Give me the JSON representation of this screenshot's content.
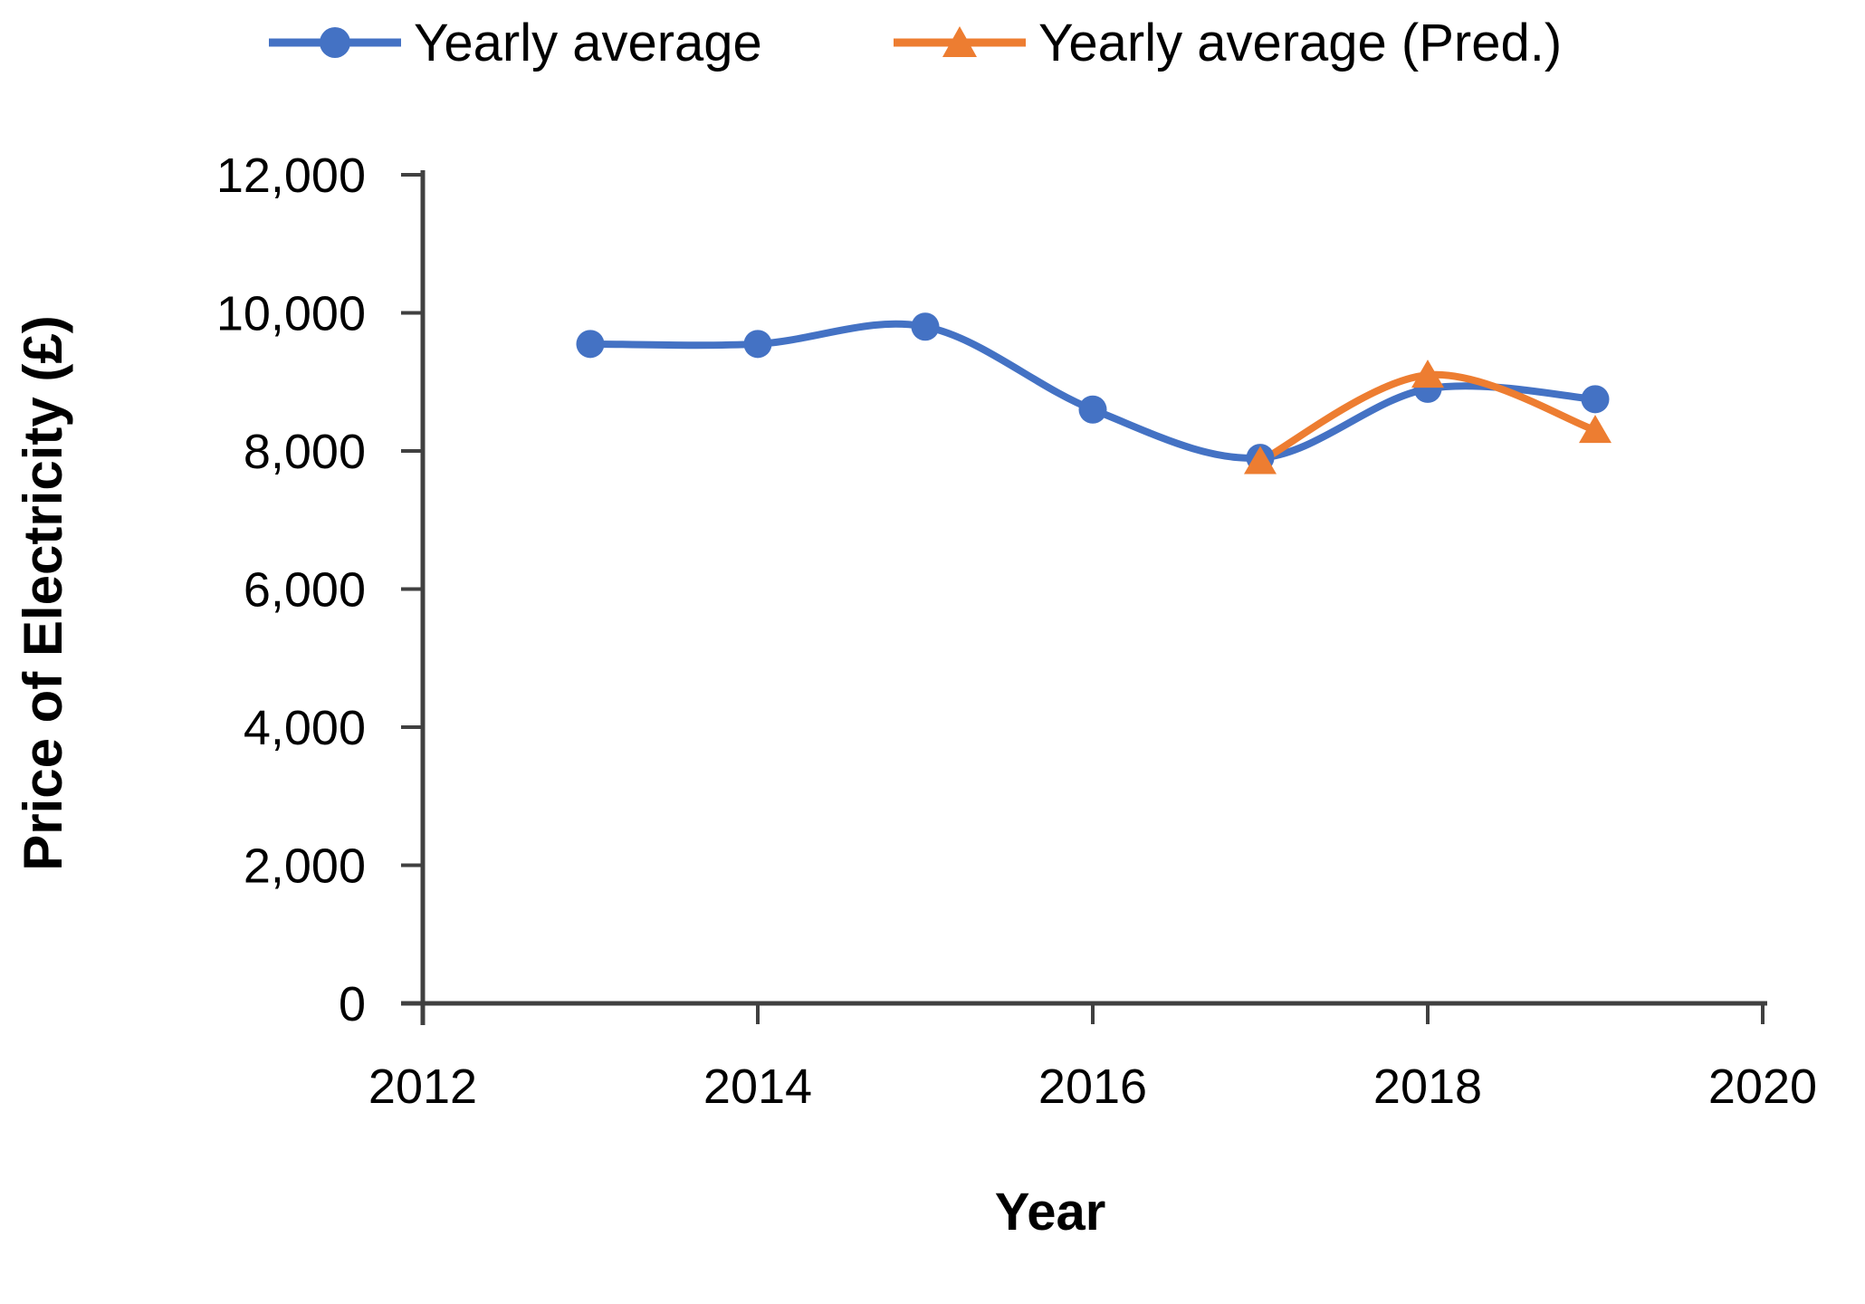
{
  "chart_data": {
    "type": "line",
    "title": "",
    "xlabel": "Year",
    "ylabel": "Price of Electricity (£)",
    "xlim": [
      2012,
      2020
    ],
    "ylim": [
      0,
      12000
    ],
    "grid": false,
    "legend_position": "top",
    "x_ticks": [
      2012,
      2014,
      2016,
      2018,
      2020
    ],
    "x_tick_labels": [
      "2012",
      "2014",
      "2016",
      "2018",
      "2020"
    ],
    "y_ticks": [
      0,
      2000,
      4000,
      6000,
      8000,
      10000,
      12000
    ],
    "y_tick_labels": [
      "0",
      "2,000",
      "4,000",
      "6,000",
      "8,000",
      "10,000",
      "12,000"
    ],
    "series": [
      {
        "name": "Yearly average",
        "color": "#4472C4",
        "marker": "circle",
        "x": [
          2013,
          2014,
          2015,
          2016,
          2017,
          2018,
          2019
        ],
        "values": [
          9550,
          9550,
          9800,
          8600,
          7900,
          8900,
          8750
        ]
      },
      {
        "name": "Yearly average (Pred.)",
        "color": "#ED7D31",
        "marker": "triangle",
        "x": [
          2017,
          2018,
          2019
        ],
        "values": [
          7850,
          9100,
          8300
        ]
      }
    ]
  },
  "colors": {
    "axis": "#404040",
    "tick_text": "#000000"
  }
}
